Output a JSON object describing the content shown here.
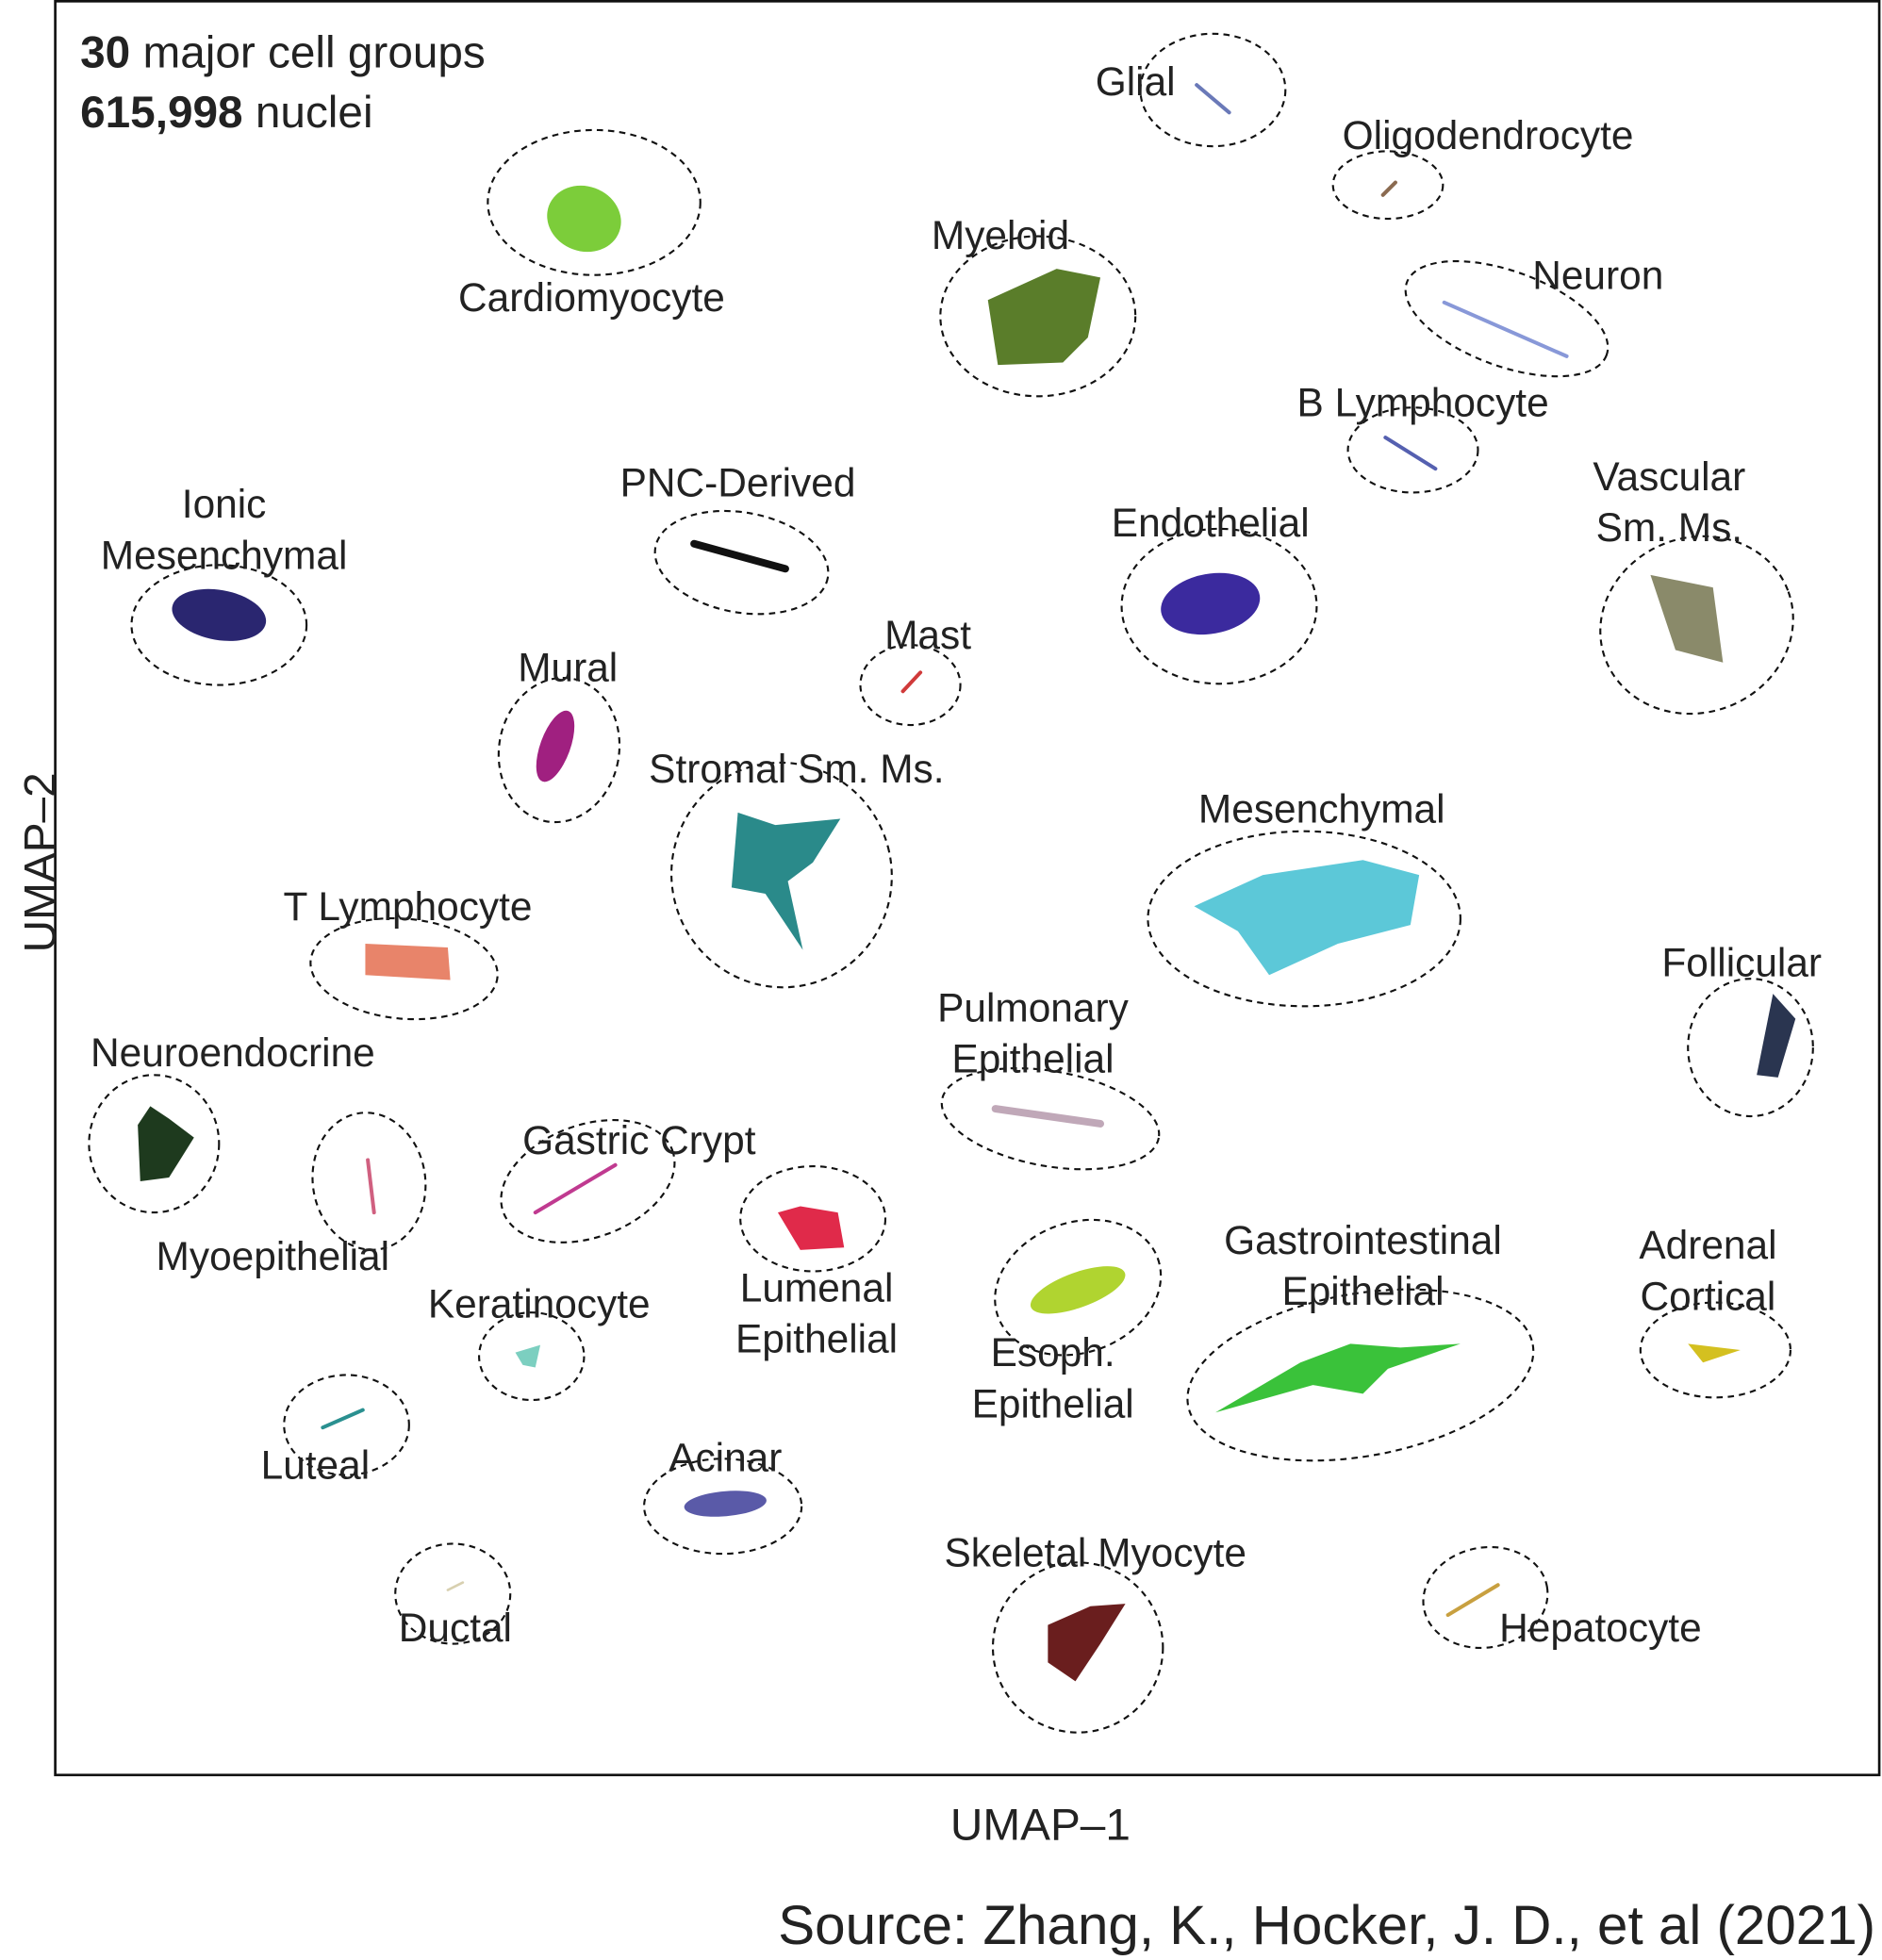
{
  "header": {
    "count": "30",
    "count_label": "major cell groups",
    "nuclei": "615,998",
    "nuclei_label": "nuclei"
  },
  "clusters": [
    {
      "lines": [
        "Glial"
      ]
    },
    {
      "lines": [
        "Oligodendrocyte"
      ]
    },
    {
      "lines": [
        "Cardiomyocyte"
      ]
    },
    {
      "lines": [
        "Myeloid"
      ]
    },
    {
      "lines": [
        "Neuron"
      ]
    },
    {
      "lines": [
        "B Lymphocyte"
      ]
    },
    {
      "lines": [
        "Vascular",
        "Sm. Ms."
      ]
    },
    {
      "lines": [
        "Endothelial"
      ]
    },
    {
      "lines": [
        "PNC-Derived"
      ]
    },
    {
      "lines": [
        "Ionic",
        "Mesenchymal"
      ]
    },
    {
      "lines": [
        "Mast"
      ]
    },
    {
      "lines": [
        "Mural"
      ]
    },
    {
      "lines": [
        "Stromal Sm. Ms."
      ]
    },
    {
      "lines": [
        "Mesenchymal"
      ]
    },
    {
      "lines": [
        "T Lymphocyte"
      ]
    },
    {
      "lines": [
        "Follicular"
      ]
    },
    {
      "lines": [
        "Pulmonary",
        "Epithelial"
      ]
    },
    {
      "lines": [
        "Neuroendocrine"
      ]
    },
    {
      "lines": [
        "Myoepithelial"
      ]
    },
    {
      "lines": [
        "Gastric Crypt"
      ]
    },
    {
      "lines": [
        "Lumenal",
        "Epithelial"
      ]
    },
    {
      "lines": [
        "Esoph.",
        "Epithelial"
      ]
    },
    {
      "lines": [
        "Gastrointestinal",
        "Epithelial"
      ]
    },
    {
      "lines": [
        "Adrenal",
        "Cortical"
      ]
    },
    {
      "lines": [
        "Keratinocyte"
      ]
    },
    {
      "lines": [
        "Luteal"
      ]
    },
    {
      "lines": [
        "Acinar"
      ]
    },
    {
      "lines": [
        "Skeletal Myocyte"
      ]
    },
    {
      "lines": [
        "Ductal"
      ]
    },
    {
      "lines": [
        "Hepatocyte"
      ]
    }
  ],
  "x_axis_label": "UMAP–1",
  "y_axis_label": "UMAP–2",
  "source": "Source: Zhang, K., Hocker, J. D., et al (2021)"
}
